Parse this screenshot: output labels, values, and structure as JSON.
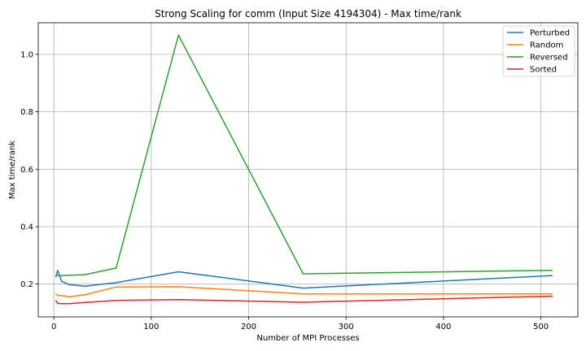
{
  "chart_data": {
    "type": "line",
    "title": "Strong Scaling for comm (Input Size 4194304) - Max time/rank",
    "xlabel": "Number of MPI Processes",
    "ylabel": "Max time/rank",
    "xlim": [
      -16,
      538
    ],
    "ylim": [
      0.086,
      1.11
    ],
    "xticks": [
      0,
      100,
      200,
      300,
      400,
      500
    ],
    "yticks": [
      0.2,
      0.4,
      0.6,
      0.8,
      1.0
    ],
    "ytick_labels": [
      "0.2",
      "0.4",
      "0.6",
      "0.8",
      "1.0"
    ],
    "grid": true,
    "legend_position": "top-right",
    "series": [
      {
        "name": "Perturbed",
        "color": "#1f77b4",
        "x": [
          2,
          4,
          8,
          16,
          32,
          64,
          128,
          256,
          512
        ],
        "y": [
          0.225,
          0.248,
          0.21,
          0.198,
          0.193,
          0.205,
          0.243,
          0.186,
          0.23
        ]
      },
      {
        "name": "Random",
        "color": "#ff7f0e",
        "x": [
          2,
          4,
          8,
          16,
          32,
          64,
          128,
          256,
          512
        ],
        "y": [
          0.167,
          0.16,
          0.16,
          0.156,
          0.163,
          0.19,
          0.191,
          0.166,
          0.166
        ]
      },
      {
        "name": "Reversed",
        "color": "#2ca02c",
        "x": [
          2,
          4,
          8,
          16,
          32,
          64,
          128,
          256,
          512
        ],
        "y": [
          0.228,
          0.23,
          0.23,
          0.231,
          0.233,
          0.256,
          1.067,
          0.236,
          0.248
        ]
      },
      {
        "name": "Sorted",
        "color": "#d62728",
        "x": [
          2,
          4,
          8,
          16,
          32,
          64,
          128,
          256,
          512
        ],
        "y": [
          0.143,
          0.133,
          0.132,
          0.132,
          0.136,
          0.143,
          0.146,
          0.137,
          0.158
        ]
      }
    ]
  }
}
